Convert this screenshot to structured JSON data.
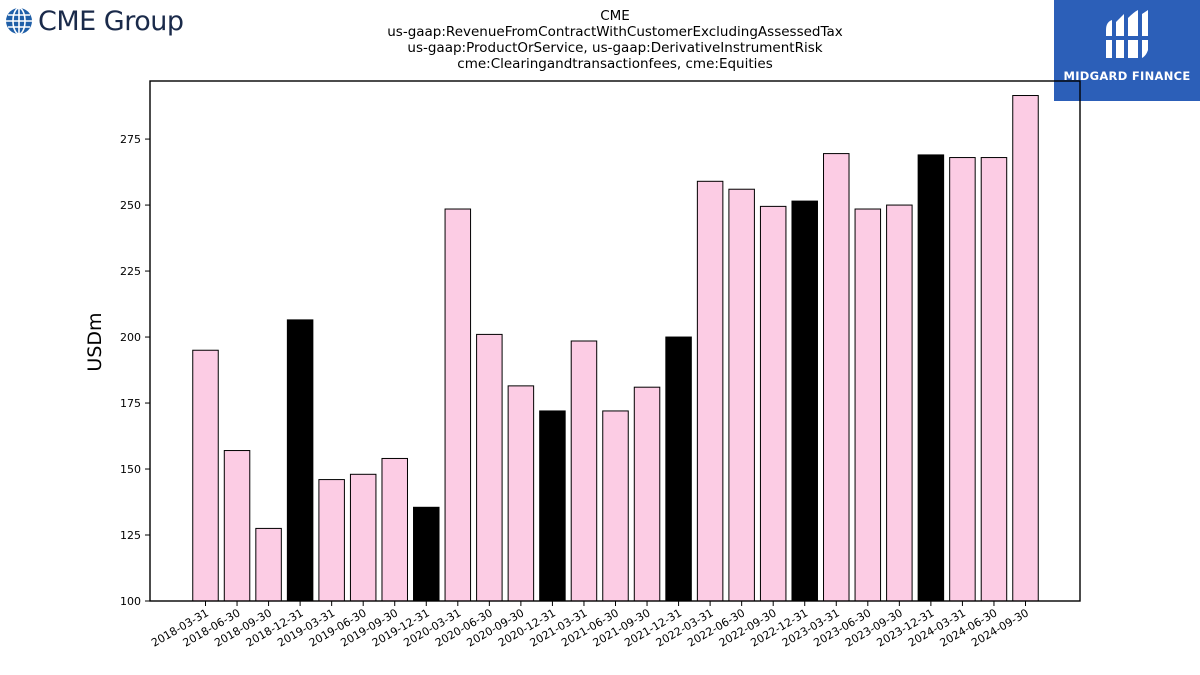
{
  "logos": {
    "left": {
      "text": "CME Group",
      "icon": "globe-icon"
    },
    "right": {
      "text": "MIDGARD FINANCE",
      "icon": "midgard-emblem-icon"
    }
  },
  "colors": {
    "pink": "#fccce4",
    "black": "#000000",
    "logo_bg": "#2c5fb8"
  },
  "chart_data": {
    "type": "bar",
    "title_lines": [
      "CME",
      "us-gaap:RevenueFromContractWithCustomerExcludingAssessedTax",
      "us-gaap:ProductOrService, us-gaap:DerivativeInstrumentRisk",
      "cme:Clearingandtransactionfees, cme:Equities"
    ],
    "xlabel": "",
    "ylabel": "USDm",
    "ylim": [
      100,
      297
    ],
    "yticks": [
      100,
      125,
      150,
      175,
      200,
      225,
      250,
      275
    ],
    "grid": false,
    "categories": [
      "2018-03-31",
      "2018-06-30",
      "2018-09-30",
      "2018-12-31",
      "2019-03-31",
      "2019-06-30",
      "2019-09-30",
      "2019-12-31",
      "2020-03-31",
      "2020-06-30",
      "2020-09-30",
      "2020-12-31",
      "2021-03-31",
      "2021-06-30",
      "2021-09-30",
      "2021-12-31",
      "2022-03-31",
      "2022-06-30",
      "2022-09-30",
      "2022-12-31",
      "2023-03-31",
      "2023-06-30",
      "2023-09-30",
      "2023-12-31",
      "2024-03-31",
      "2024-06-30",
      "2024-09-30"
    ],
    "values": [
      195,
      157,
      127.5,
      206.5,
      146,
      148,
      154,
      135.5,
      248.5,
      201,
      181.5,
      172,
      198.5,
      172,
      181,
      200,
      259,
      256,
      249.5,
      251.5,
      269.5,
      248.5,
      250,
      269,
      268,
      268,
      291.5
    ],
    "highlight": [
      false,
      false,
      false,
      true,
      false,
      false,
      false,
      true,
      false,
      false,
      false,
      true,
      false,
      false,
      false,
      true,
      false,
      false,
      false,
      true,
      false,
      false,
      false,
      true,
      false,
      false,
      false
    ]
  }
}
